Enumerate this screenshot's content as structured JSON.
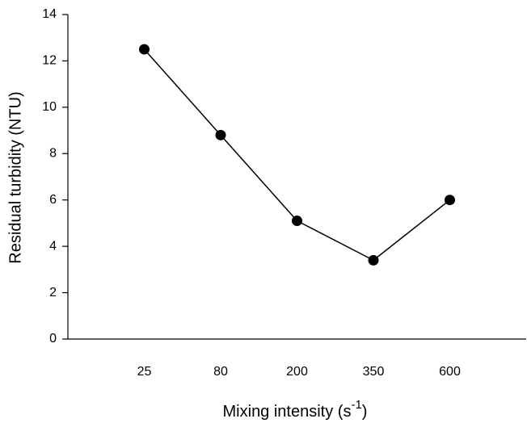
{
  "chart_data": {
    "type": "line",
    "x_label": [
      "Mixing intensity (s",
      "-1",
      ")"
    ],
    "y_label": "Residual turbidity (NTU)",
    "categories": [
      "25",
      "80",
      "200",
      "350",
      "600"
    ],
    "series": [
      {
        "color": "#000000",
        "values": [
          12.5,
          8.8,
          5.1,
          3.4,
          6.0
        ]
      }
    ],
    "ylim": [
      0,
      14
    ],
    "yticks": [
      0,
      2,
      4,
      6,
      8,
      10,
      12,
      14
    ]
  }
}
